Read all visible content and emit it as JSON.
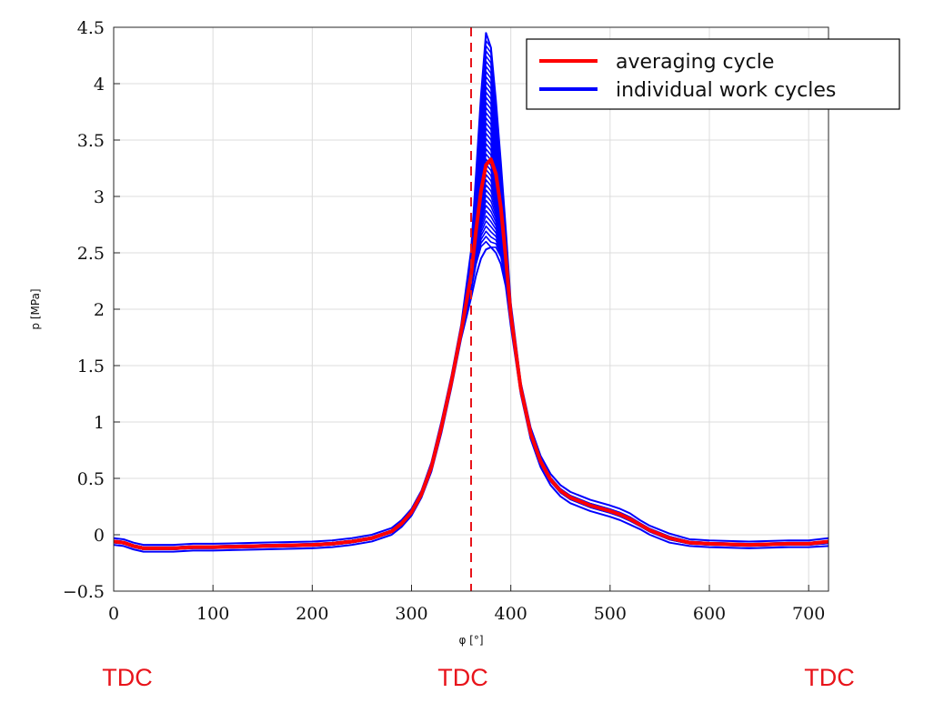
{
  "chart_data": {
    "type": "line",
    "title": "",
    "xlabel": "φ  [°]",
    "ylabel": "p  [MPa]",
    "xlim": [
      0,
      720
    ],
    "ylim": [
      -0.5,
      4.5
    ],
    "grid": true,
    "xticks": [
      0,
      100,
      200,
      300,
      400,
      500,
      600,
      700
    ],
    "xtick_labels": [
      "0",
      "100",
      "200",
      "300",
      "400",
      "500",
      "600",
      "700"
    ],
    "yticks": [
      -0.5,
      0,
      0.5,
      1,
      1.5,
      2,
      2.5,
      3,
      3.5,
      4,
      4.5
    ],
    "ytick_labels": [
      "−0.5",
      "0",
      "0.5",
      "1",
      "1.5",
      "2",
      "2.5",
      "3",
      "3.5",
      "4",
      "4.5"
    ],
    "legend_position": "top-right",
    "legend": [
      {
        "label": "averaging cycle",
        "color": "#ff0000"
      },
      {
        "label": "individual work cycles",
        "color": "#0000ff"
      }
    ],
    "reference_line": {
      "x": 360,
      "style": "dashed",
      "color": "#e8141b"
    },
    "series": [
      {
        "name": "averaging cycle",
        "color": "#ff0000",
        "x": [
          0,
          10,
          20,
          30,
          40,
          60,
          80,
          100,
          150,
          200,
          220,
          240,
          260,
          280,
          290,
          300,
          310,
          320,
          330,
          340,
          350,
          360,
          365,
          370,
          375,
          380,
          385,
          390,
          395,
          400,
          410,
          420,
          430,
          440,
          450,
          460,
          480,
          500,
          510,
          520,
          530,
          540,
          560,
          580,
          600,
          640,
          680,
          700,
          720
        ],
        "values": [
          -0.06,
          -0.07,
          -0.1,
          -0.12,
          -0.12,
          -0.12,
          -0.11,
          -0.11,
          -0.1,
          -0.09,
          -0.08,
          -0.06,
          -0.03,
          0.03,
          0.1,
          0.2,
          0.36,
          0.6,
          0.95,
          1.35,
          1.8,
          2.3,
          2.7,
          3.05,
          3.28,
          3.33,
          3.2,
          2.9,
          2.45,
          1.95,
          1.3,
          0.9,
          0.65,
          0.49,
          0.39,
          0.33,
          0.26,
          0.21,
          0.18,
          0.14,
          0.09,
          0.04,
          -0.03,
          -0.07,
          -0.08,
          -0.09,
          -0.08,
          -0.08,
          -0.06
        ]
      },
      {
        "name": "individual work cycles",
        "color": "#0000ff",
        "peak_range": [
          2.55,
          4.48
        ],
        "band_low": [
          -0.09,
          -0.1,
          -0.13,
          -0.15,
          -0.15,
          -0.15,
          -0.14,
          -0.14,
          -0.13,
          -0.12,
          -0.11,
          -0.09,
          -0.06,
          0.0,
          0.07,
          0.17,
          0.33,
          0.56,
          0.9,
          1.3,
          1.74,
          2.1,
          2.3,
          2.45,
          2.53,
          2.55,
          2.5,
          2.4,
          2.2,
          1.85,
          1.25,
          0.85,
          0.6,
          0.44,
          0.34,
          0.28,
          0.21,
          0.16,
          0.13,
          0.09,
          0.05,
          0.0,
          -0.07,
          -0.1,
          -0.11,
          -0.12,
          -0.11,
          -0.11,
          -0.1
        ],
        "band_high": [
          -0.03,
          -0.04,
          -0.07,
          -0.09,
          -0.09,
          -0.09,
          -0.08,
          -0.08,
          -0.07,
          -0.06,
          -0.05,
          -0.03,
          0.0,
          0.06,
          0.13,
          0.23,
          0.39,
          0.64,
          1.0,
          1.4,
          1.86,
          2.52,
          3.2,
          3.9,
          4.45,
          4.32,
          3.85,
          3.3,
          2.7,
          2.05,
          1.35,
          0.95,
          0.7,
          0.54,
          0.44,
          0.38,
          0.31,
          0.26,
          0.23,
          0.19,
          0.13,
          0.08,
          0.01,
          -0.04,
          -0.05,
          -0.06,
          -0.05,
          -0.05,
          -0.03
        ]
      }
    ],
    "annotations": [
      {
        "text": "TDC",
        "x": 0
      },
      {
        "text": "TDC",
        "x": 360
      },
      {
        "text": "TDC",
        "x": 720
      }
    ]
  }
}
